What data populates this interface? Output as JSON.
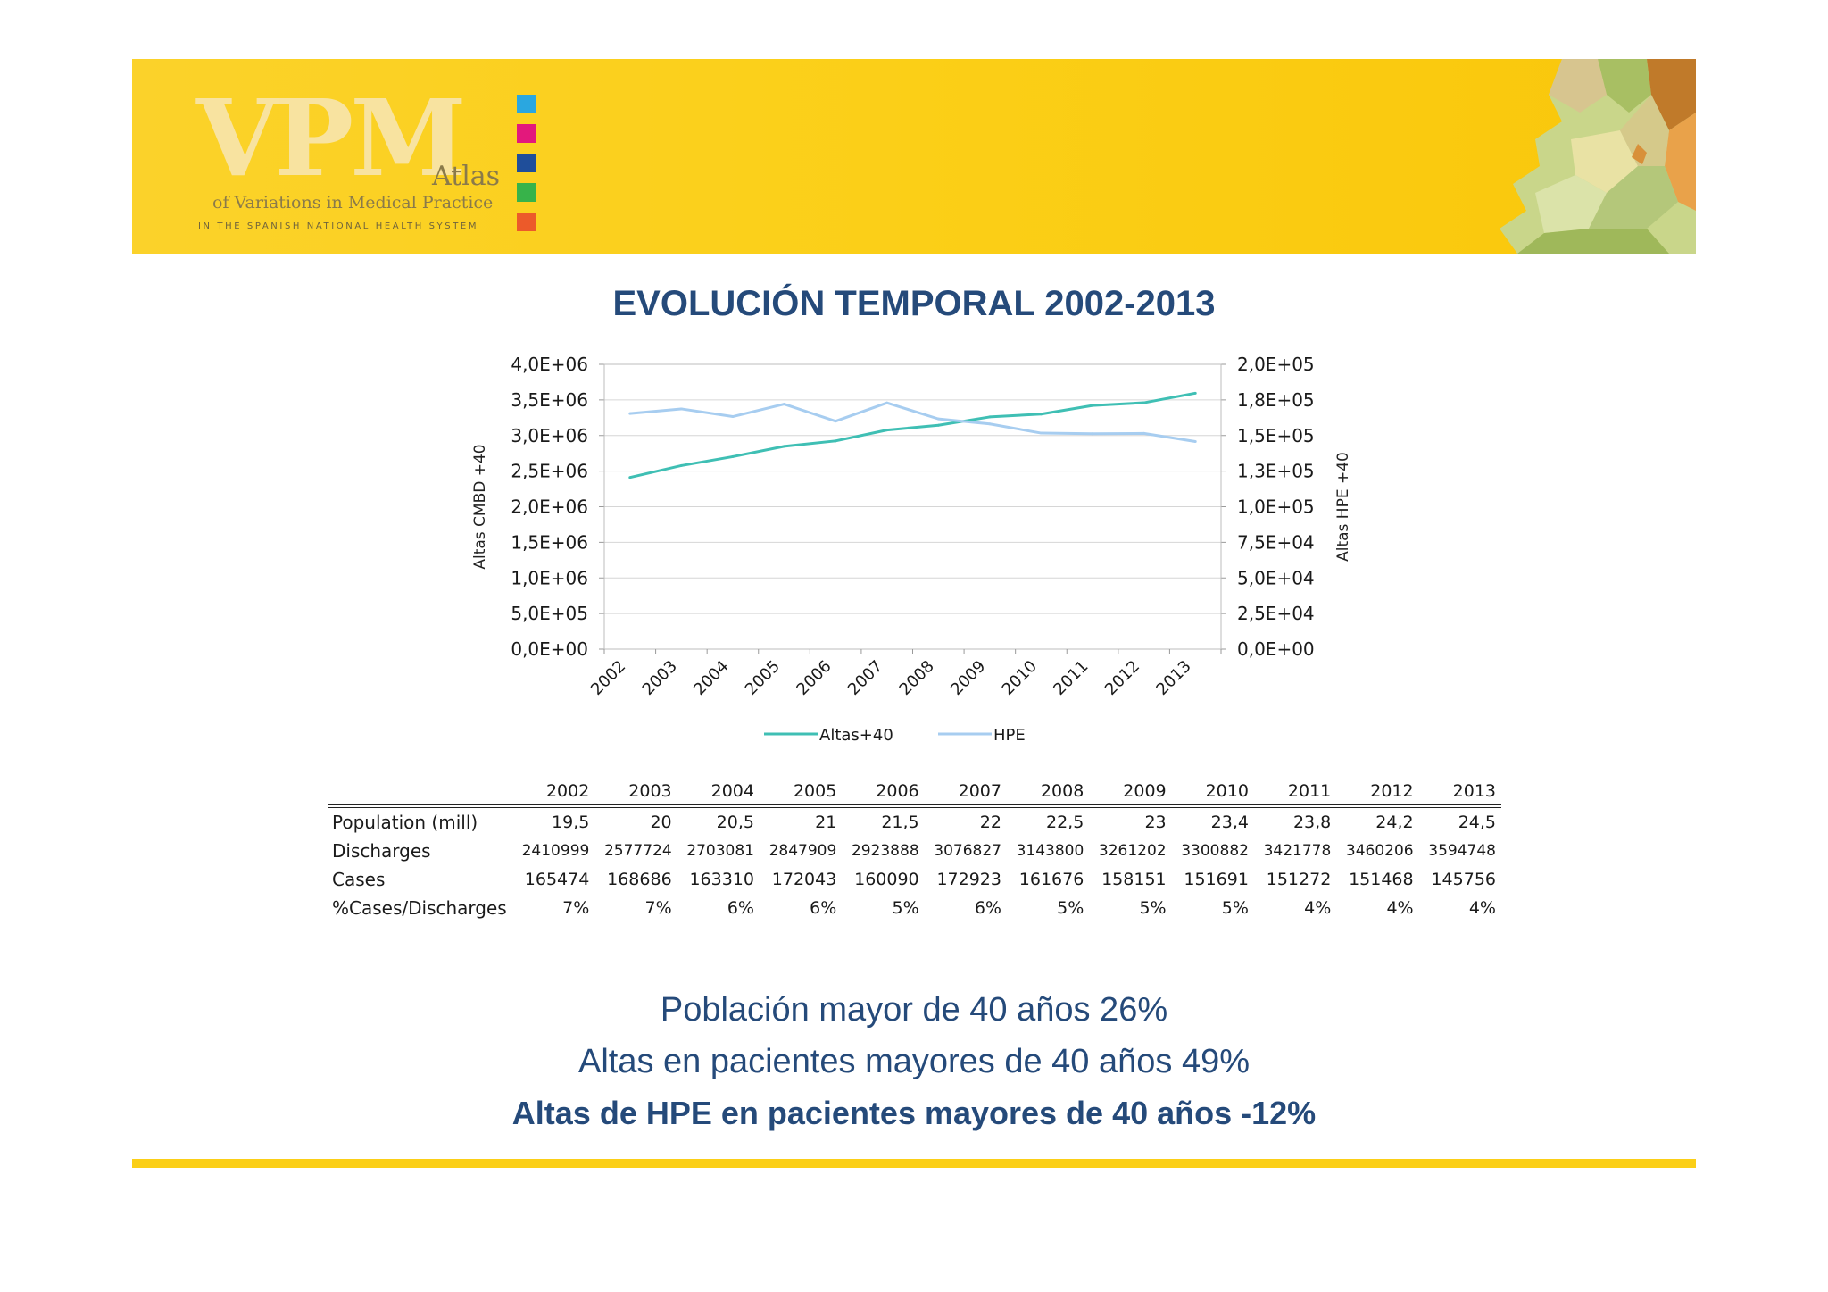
{
  "logo": {
    "main": "VPM",
    "atlas": "Atlas",
    "subtitle": "of Variations in Medical Practice",
    "tagline": "IN THE SPANISH NATIONAL HEALTH SYSTEM",
    "swatch_colors": [
      "#2aa7e0",
      "#e3187c",
      "#1f4e9a",
      "#37b34a",
      "#ec5a2a"
    ]
  },
  "chart_data": {
    "type": "line",
    "title": "EVOLUCIÓN TEMPORAL 2002-2013",
    "categories": [
      "2002",
      "2003",
      "2004",
      "2005",
      "2006",
      "2007",
      "2008",
      "2009",
      "2010",
      "2011",
      "2012",
      "2013"
    ],
    "series": [
      {
        "name": "Altas+40",
        "axis": "left",
        "color": "#3fbfb4",
        "values": [
          2410999,
          2577724,
          2703081,
          2847909,
          2923888,
          3076827,
          3143800,
          3261202,
          3300882,
          3421778,
          3460206,
          3594748
        ]
      },
      {
        "name": "HPE",
        "axis": "right",
        "color": "#a7cdf0",
        "values": [
          165474,
          168686,
          163310,
          172043,
          160090,
          172923,
          161676,
          158151,
          151691,
          151272,
          151468,
          145756
        ]
      }
    ],
    "ylabel_left": "Altas CMBD +40",
    "ylabel_right": "Altas HPE  +40",
    "ylim_left": [
      0,
      4000000
    ],
    "ylim_right": [
      0,
      200000
    ],
    "yticks_left": [
      "0,0E+00",
      "5,0E+05",
      "1,0E+06",
      "1,5E+06",
      "2,0E+06",
      "2,5E+06",
      "3,0E+06",
      "3,5E+06",
      "4,0E+06"
    ],
    "yticks_right": [
      "0,0E+00",
      "2,5E+04",
      "5,0E+04",
      "7,5E+04",
      "1,0E+05",
      "1,3E+05",
      "1,5E+05",
      "1,8E+05",
      "2,0E+05"
    ],
    "legend_position": "bottom",
    "grid": true
  },
  "table": {
    "headers": [
      "2002",
      "2003",
      "2004",
      "2005",
      "2006",
      "2007",
      "2008",
      "2009",
      "2010",
      "2011",
      "2012",
      "2013"
    ],
    "rows": [
      {
        "label": "Population (mill)",
        "values": [
          "19,5",
          "20",
          "20,5",
          "21",
          "21,5",
          "22",
          "22,5",
          "23",
          "23,4",
          "23,8",
          "24,2",
          "24,5"
        ]
      },
      {
        "label": "Discharges",
        "values": [
          "2410999",
          "2577724",
          "2703081",
          "2847909",
          "2923888",
          "3076827",
          "3143800",
          "3261202",
          "3300882",
          "3421778",
          "3460206",
          "3594748"
        ]
      },
      {
        "label": "Cases",
        "values": [
          "165474",
          "168686",
          "163310",
          "172043",
          "160090",
          "172923",
          "161676",
          "158151",
          "151691",
          "151272",
          "151468",
          "145756"
        ]
      },
      {
        "label": "%Cases/Discharges",
        "values": [
          "7%",
          "7%",
          "6%",
          "6%",
          "5%",
          "6%",
          "5%",
          "5%",
          "5%",
          "4%",
          "4%",
          "4%"
        ]
      }
    ]
  },
  "footer": {
    "line1": "Población mayor de 40 años 26%",
    "line2": "Altas en pacientes mayores de 40 años 49%",
    "line3": "Altas de HPE en pacientes mayores de 40 años -12%"
  }
}
